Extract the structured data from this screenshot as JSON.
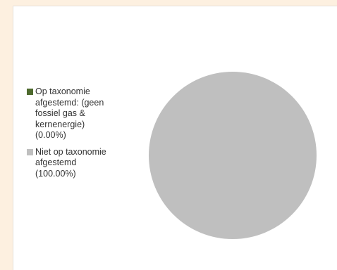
{
  "chart_data": {
    "type": "pie",
    "slices": [
      {
        "label": "Op taxonomie\nafgestemd: (geen\nfossiel gas &\nkernenergie)\n(0.00%)",
        "value": 0.0,
        "color": "#4e6a2e"
      },
      {
        "label": "Niet op taxonomie\nafgestemd\n(100.00%)",
        "value": 100.0,
        "color": "#bfbfbf"
      }
    ],
    "legend_position": "left"
  }
}
